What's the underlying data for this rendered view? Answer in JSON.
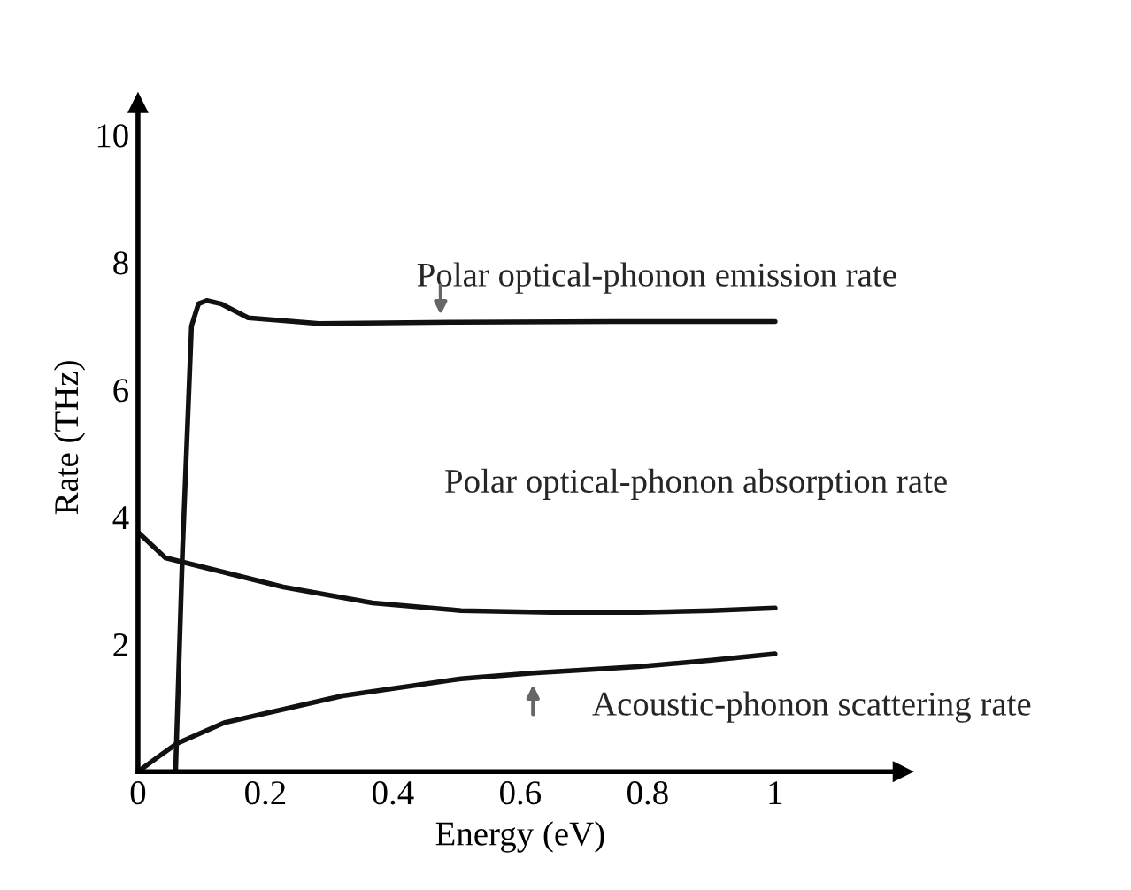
{
  "chart_data": {
    "type": "line",
    "xlabel": "Energy (eV)",
    "ylabel": "Rate (THz)",
    "xlim": [
      0,
      1.2
    ],
    "ylim": [
      0,
      10.5
    ],
    "xticks": [
      0,
      0.2,
      0.4,
      0.6,
      0.8,
      1
    ],
    "yticks": [
      2,
      4,
      6,
      8,
      10
    ],
    "grid": false,
    "legend": false,
    "marker": "none",
    "line_style": "solid",
    "series": [
      {
        "color": "#111111",
        "x": [
          0.059,
          0.07,
          0.084,
          0.095,
          0.108,
          0.13,
          0.173,
          0.284,
          0.5,
          0.75,
          1.0
        ],
        "values": [
          0,
          3.5,
          7.0,
          7.35,
          7.4,
          7.35,
          7.13,
          7.04,
          7.06,
          7.07,
          7.07
        ]
      },
      {
        "color": "#111111",
        "x": [
          0,
          0.043,
          0.136,
          0.228,
          0.368,
          0.507,
          0.65,
          0.786,
          0.9,
          1.0
        ],
        "values": [
          3.76,
          3.36,
          3.13,
          2.9,
          2.65,
          2.53,
          2.5,
          2.5,
          2.53,
          2.57
        ]
      },
      {
        "color": "#111111",
        "x": [
          0,
          0.03,
          0.061,
          0.136,
          0.321,
          0.507,
          0.62,
          0.786,
          0.9,
          1.0
        ],
        "values": [
          0,
          0.22,
          0.44,
          0.77,
          1.19,
          1.46,
          1.55,
          1.65,
          1.75,
          1.85
        ]
      }
    ],
    "annotations": [
      {
        "text": "Polar optical-phonon emission rate",
        "x": 0.475,
        "y": 7.1
      },
      "Polar optical-phonon absorption rate",
      {
        "text": "Acoustic-phonon scattering rate",
        "x": 0.62,
        "y": 1.44
      }
    ]
  }
}
